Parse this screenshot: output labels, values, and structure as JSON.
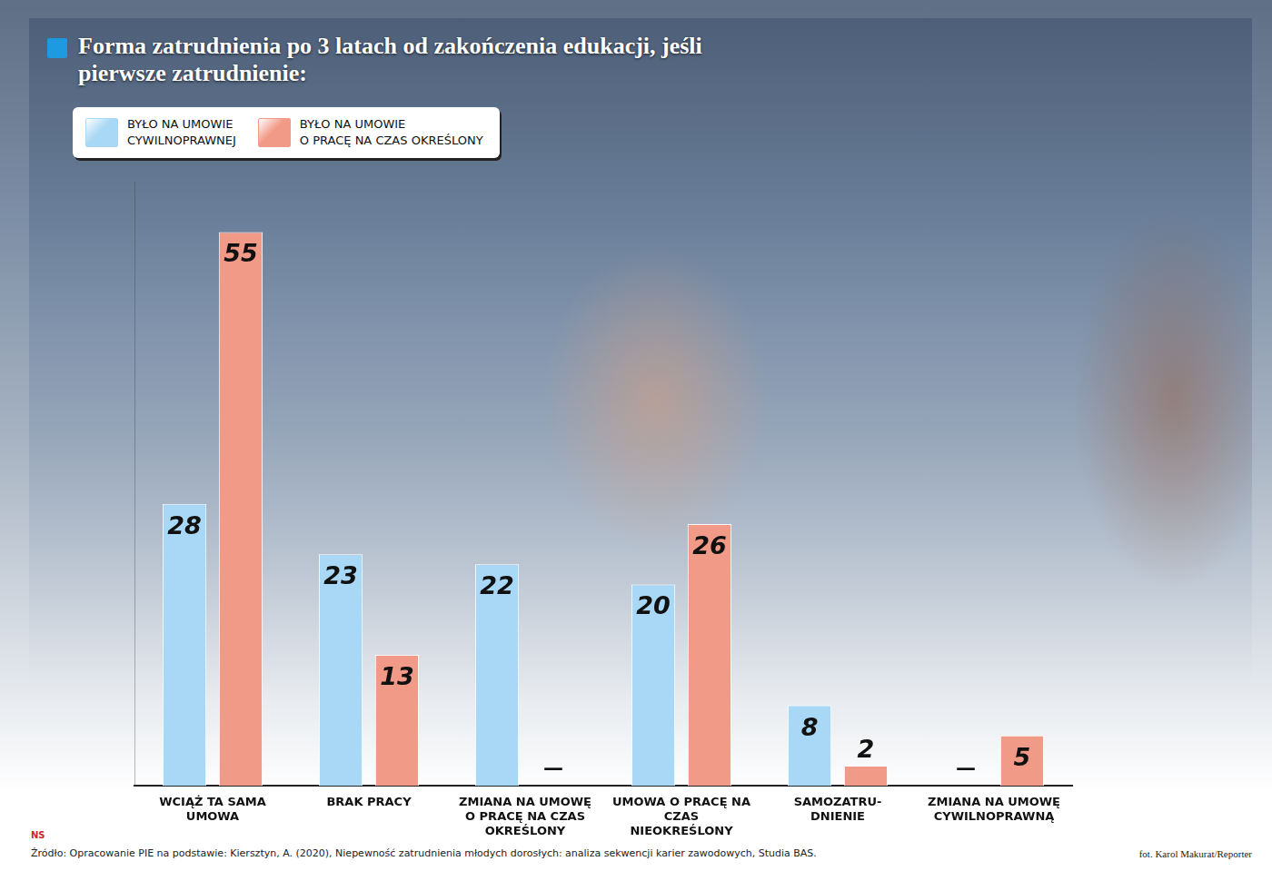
{
  "chart_data": {
    "type": "bar",
    "title": "Forma zatrudnienia po 3 latach od zakończenia edukacji, jeśli pierwsze zatrudnienie:",
    "categories": [
      "WCIĄŻ TA SAMA UMOWA",
      "BRAK PRACY",
      "ZMIANA NA UMOWĘ O PRACĘ NA CZAS OKREŚLONY",
      "UMOWA O PRACĘ NA CZAS NIEOKREŚLONY",
      "SAMOZATRU-DNIENIE",
      "ZMIANA NA UMOWĘ CYWILNOPRAWNĄ"
    ],
    "series": [
      {
        "name": "BYŁO NA UMOWIE CYWILNOPRAWNEJ",
        "color": "#a8d8f5",
        "values": [
          28,
          23,
          22,
          20,
          8,
          null
        ],
        "value_labels": [
          "28",
          "23",
          "22",
          "20",
          "8",
          "—"
        ]
      },
      {
        "name": "BYŁO NA UMOWIE O PRACĘ NA CZAS OKREŚLONY",
        "color": "#f29a88",
        "values": [
          55,
          13,
          null,
          26,
          2,
          5
        ],
        "value_labels": [
          "55",
          "13",
          "—",
          "26",
          "2",
          "5"
        ]
      }
    ],
    "ylim": [
      0,
      60
    ],
    "yticks": [],
    "tick_labels": "x",
    "grid": false,
    "legend": "top-left",
    "data_labels": true,
    "source": "Źródło: Opracowanie PIE na podstawie: Kiersztyn, A. (2020), Niepewność zatrudnienia młodych dorosłych: analiza sekwencji karier zawodowych, Studia BAS.",
    "credit": "fot. Karol Makurat/Reporter",
    "logo": "NS"
  }
}
